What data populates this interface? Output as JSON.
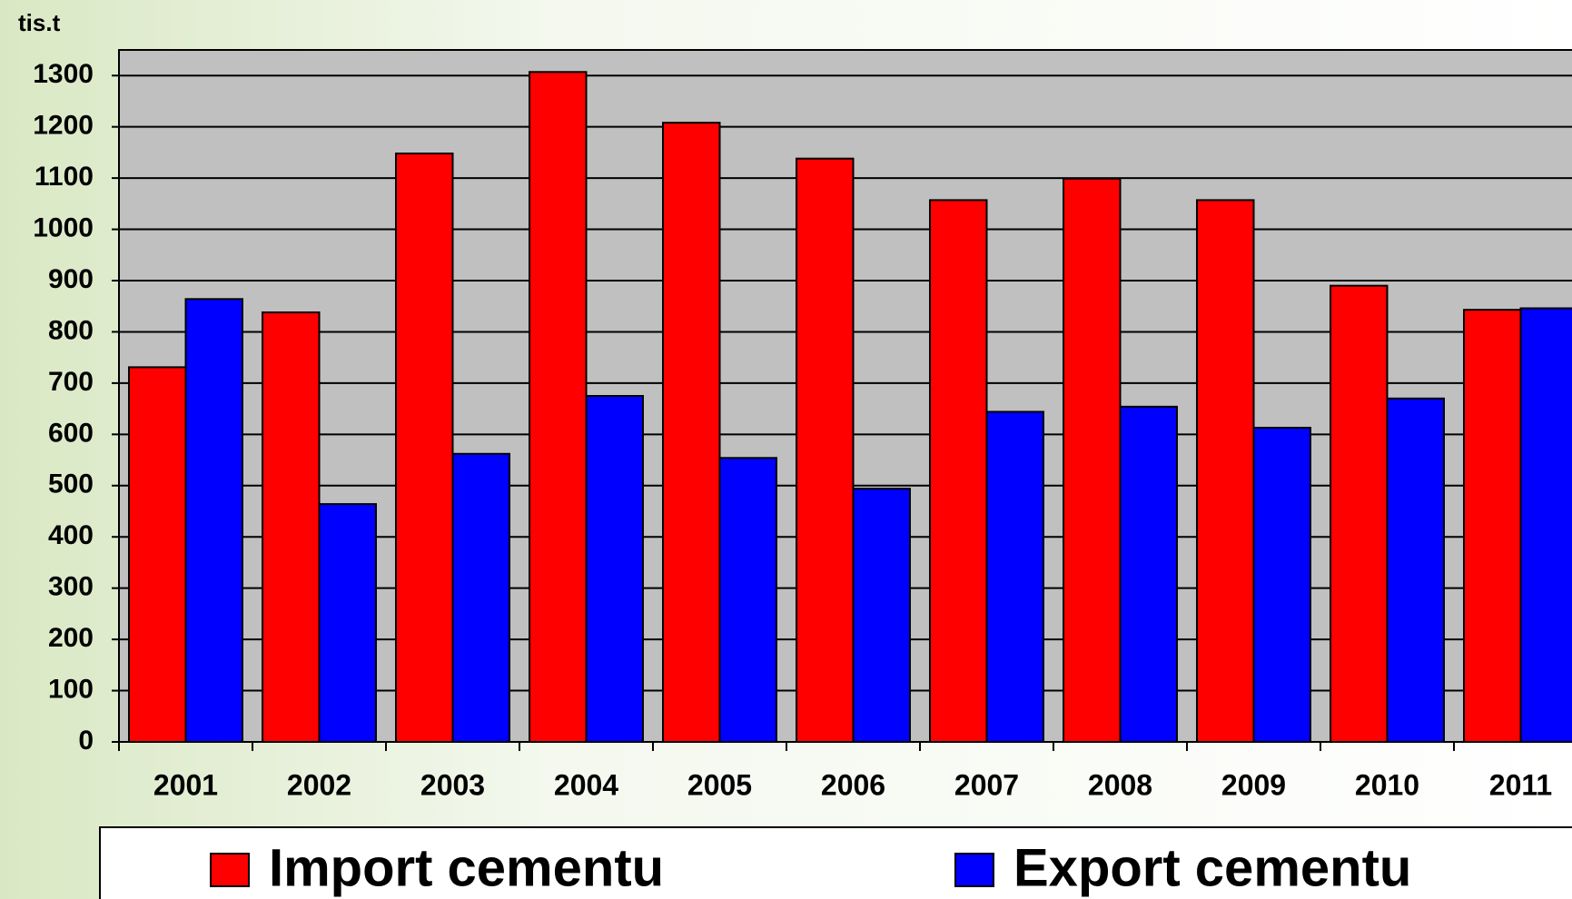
{
  "chart_data": {
    "type": "bar",
    "y_unit": "tis.t",
    "categories": [
      "2001",
      "2002",
      "2003",
      "2004",
      "2005",
      "2006",
      "2007",
      "2008",
      "2009",
      "2010",
      "2011"
    ],
    "series": [
      {
        "name": "Import cementu",
        "color": "#ff0000",
        "values": [
          731,
          838,
          1148,
          1307,
          1208,
          1138,
          1057,
          1099,
          1057,
          890,
          843
        ]
      },
      {
        "name": "Export cementu",
        "color": "#0000ff",
        "values": [
          864,
          464,
          562,
          675,
          554,
          494,
          644,
          654,
          613,
          670,
          846
        ]
      }
    ],
    "ylim": [
      0,
      1350
    ],
    "yticks": [
      0,
      100,
      200,
      300,
      400,
      500,
      600,
      700,
      800,
      900,
      1000,
      1100,
      1200,
      1300
    ],
    "grid": true,
    "plot_background": "#c0c0c0"
  }
}
